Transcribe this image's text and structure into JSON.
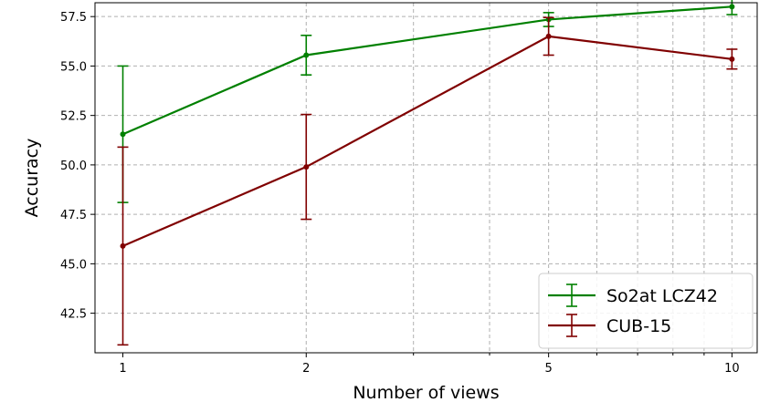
{
  "chart_data": {
    "type": "line",
    "title": "",
    "xlabel": "Number of views",
    "ylabel": "Accuracy",
    "x_scale": "log",
    "xlim": [
      0.9,
      11
    ],
    "ylim": [
      40.5,
      58.2
    ],
    "x_ticks": [
      1,
      2,
      5,
      10
    ],
    "x_tick_labels": [
      "1",
      "2",
      "5",
      "10"
    ],
    "y_ticks": [
      42.5,
      45.0,
      47.5,
      50.0,
      52.5,
      55.0,
      57.5
    ],
    "y_tick_labels": [
      "42.5",
      "45.0",
      "47.5",
      "50.0",
      "52.5",
      "55.0",
      "57.5"
    ],
    "grid": true,
    "legend_position": "lower-right",
    "x": [
      1,
      2,
      5,
      10
    ],
    "series": [
      {
        "name": "So2at LCZ42",
        "color": "#008000",
        "values": [
          51.55,
          55.55,
          57.35,
          58.0
        ],
        "error": [
          3.45,
          1.0,
          0.35,
          0.4
        ]
      },
      {
        "name": "CUB-15",
        "color": "#800000",
        "values": [
          45.9,
          49.9,
          56.5,
          55.35
        ],
        "error": [
          5.0,
          2.65,
          0.95,
          0.5
        ]
      }
    ]
  }
}
